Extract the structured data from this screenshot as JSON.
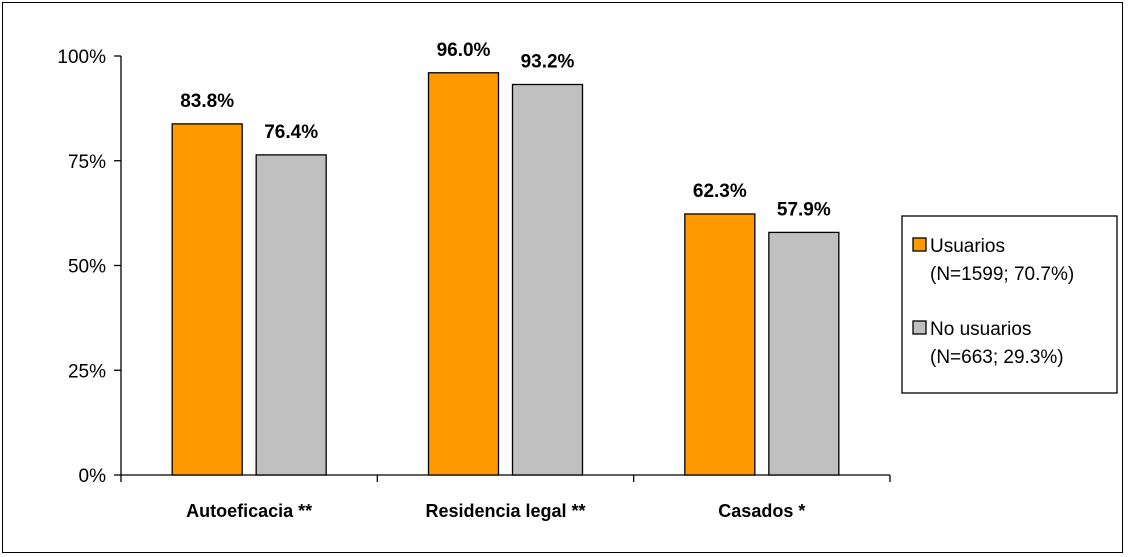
{
  "chart_data": {
    "type": "bar",
    "categories": [
      "Autoeficacia **",
      "Residencia legal **",
      "Casados *"
    ],
    "series": [
      {
        "name": "Usuarios",
        "name_line2": "(N=1599; 70.7%)",
        "color": "#FF9900",
        "values": [
          83.8,
          96.0,
          62.3
        ]
      },
      {
        "name": "No usuarios",
        "name_line2": "(N=663; 29.3%)",
        "color": "#C0C0C0",
        "values": [
          76.4,
          93.2,
          57.9
        ]
      }
    ],
    "ylim": [
      0,
      100
    ],
    "yticks": [
      0,
      25,
      50,
      75,
      100
    ],
    "y_tick_format": "percent",
    "data_label_decimals": 1,
    "grid": false,
    "legend_position": "right",
    "title": "",
    "xlabel": "",
    "ylabel": ""
  }
}
